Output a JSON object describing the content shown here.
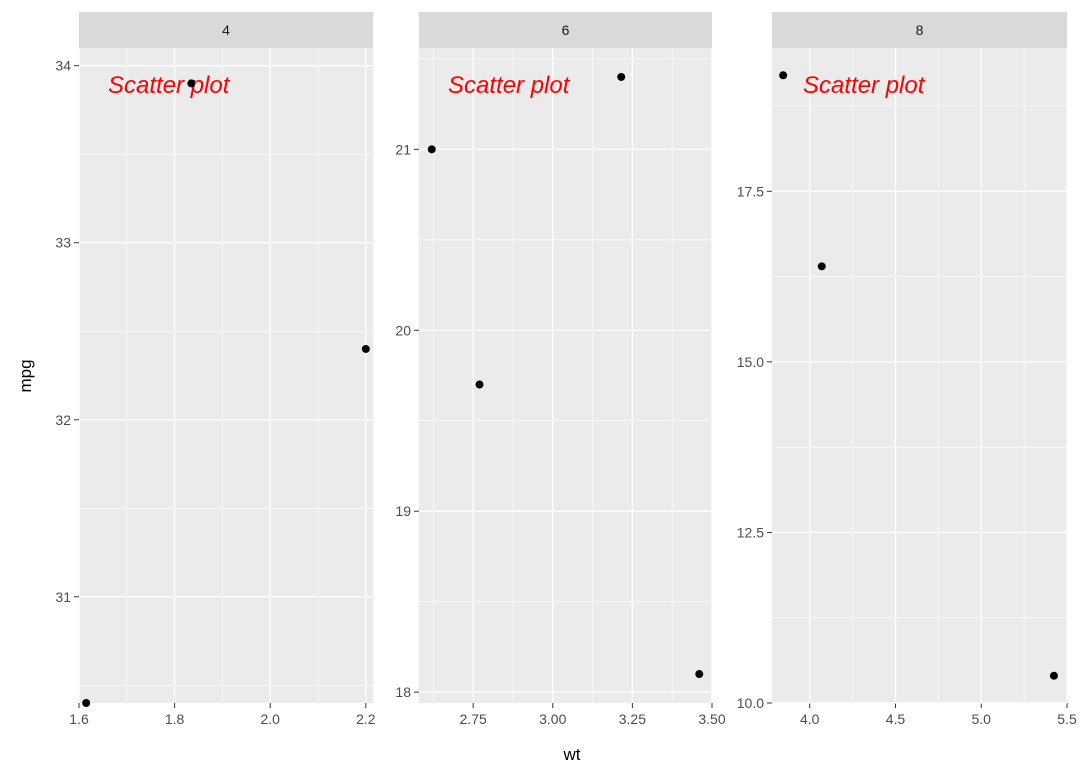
{
  "colors": {
    "panel_bg": "#ebebeb",
    "strip_bg": "#d9d9d9",
    "grid": "#ffffff",
    "point": "#000000",
    "annotation": "#ff0000",
    "tick": "#333333"
  },
  "chart_data": {
    "type": "scatter",
    "facet_var": "cyl",
    "xlabel": "wt",
    "ylabel": "mpg",
    "annotation": "Scatter plot",
    "facets": [
      {
        "label": "4",
        "xlim": [
          1.6,
          2.215
        ],
        "ylim": [
          30.4,
          34.1
        ],
        "xticks": [
          1.6,
          1.8,
          2.0,
          2.2
        ],
        "xtick_labels": [
          "1.6",
          "1.8",
          "2.0",
          "2.2"
        ],
        "yticks": [
          31,
          32,
          33,
          34
        ],
        "ytick_labels": [
          "31",
          "32",
          "33",
          "34"
        ],
        "points": [
          {
            "x": 1.615,
            "y": 30.4
          },
          {
            "x": 1.835,
            "y": 33.9
          },
          {
            "x": 2.2,
            "y": 32.4
          }
        ]
      },
      {
        "label": "6",
        "xlim": [
          2.58,
          3.5
        ],
        "ylim": [
          17.94,
          21.56
        ],
        "xticks": [
          2.75,
          3.0,
          3.25,
          3.5
        ],
        "xtick_labels": [
          "2.75",
          "3.00",
          "3.25",
          "3.50"
        ],
        "yticks": [
          18,
          19,
          20,
          21
        ],
        "ytick_labels": [
          "18",
          "19",
          "20",
          "21"
        ],
        "points": [
          {
            "x": 2.62,
            "y": 21.0
          },
          {
            "x": 2.77,
            "y": 19.7
          },
          {
            "x": 3.215,
            "y": 21.4
          },
          {
            "x": 3.46,
            "y": 18.1
          }
        ]
      },
      {
        "label": "8",
        "xlim": [
          3.78,
          5.5
        ],
        "ylim": [
          10.0,
          19.6
        ],
        "xticks": [
          4.0,
          4.5,
          5.0,
          5.5
        ],
        "xtick_labels": [
          "4.0",
          "4.5",
          "5.0",
          "5.5"
        ],
        "yticks": [
          10.0,
          12.5,
          15.0,
          17.5
        ],
        "ytick_labels": [
          "10.0",
          "12.5",
          "15.0",
          "17.5"
        ],
        "points": [
          {
            "x": 3.845,
            "y": 19.2
          },
          {
            "x": 4.07,
            "y": 16.4
          },
          {
            "x": 5.424,
            "y": 10.4
          }
        ]
      }
    ]
  }
}
